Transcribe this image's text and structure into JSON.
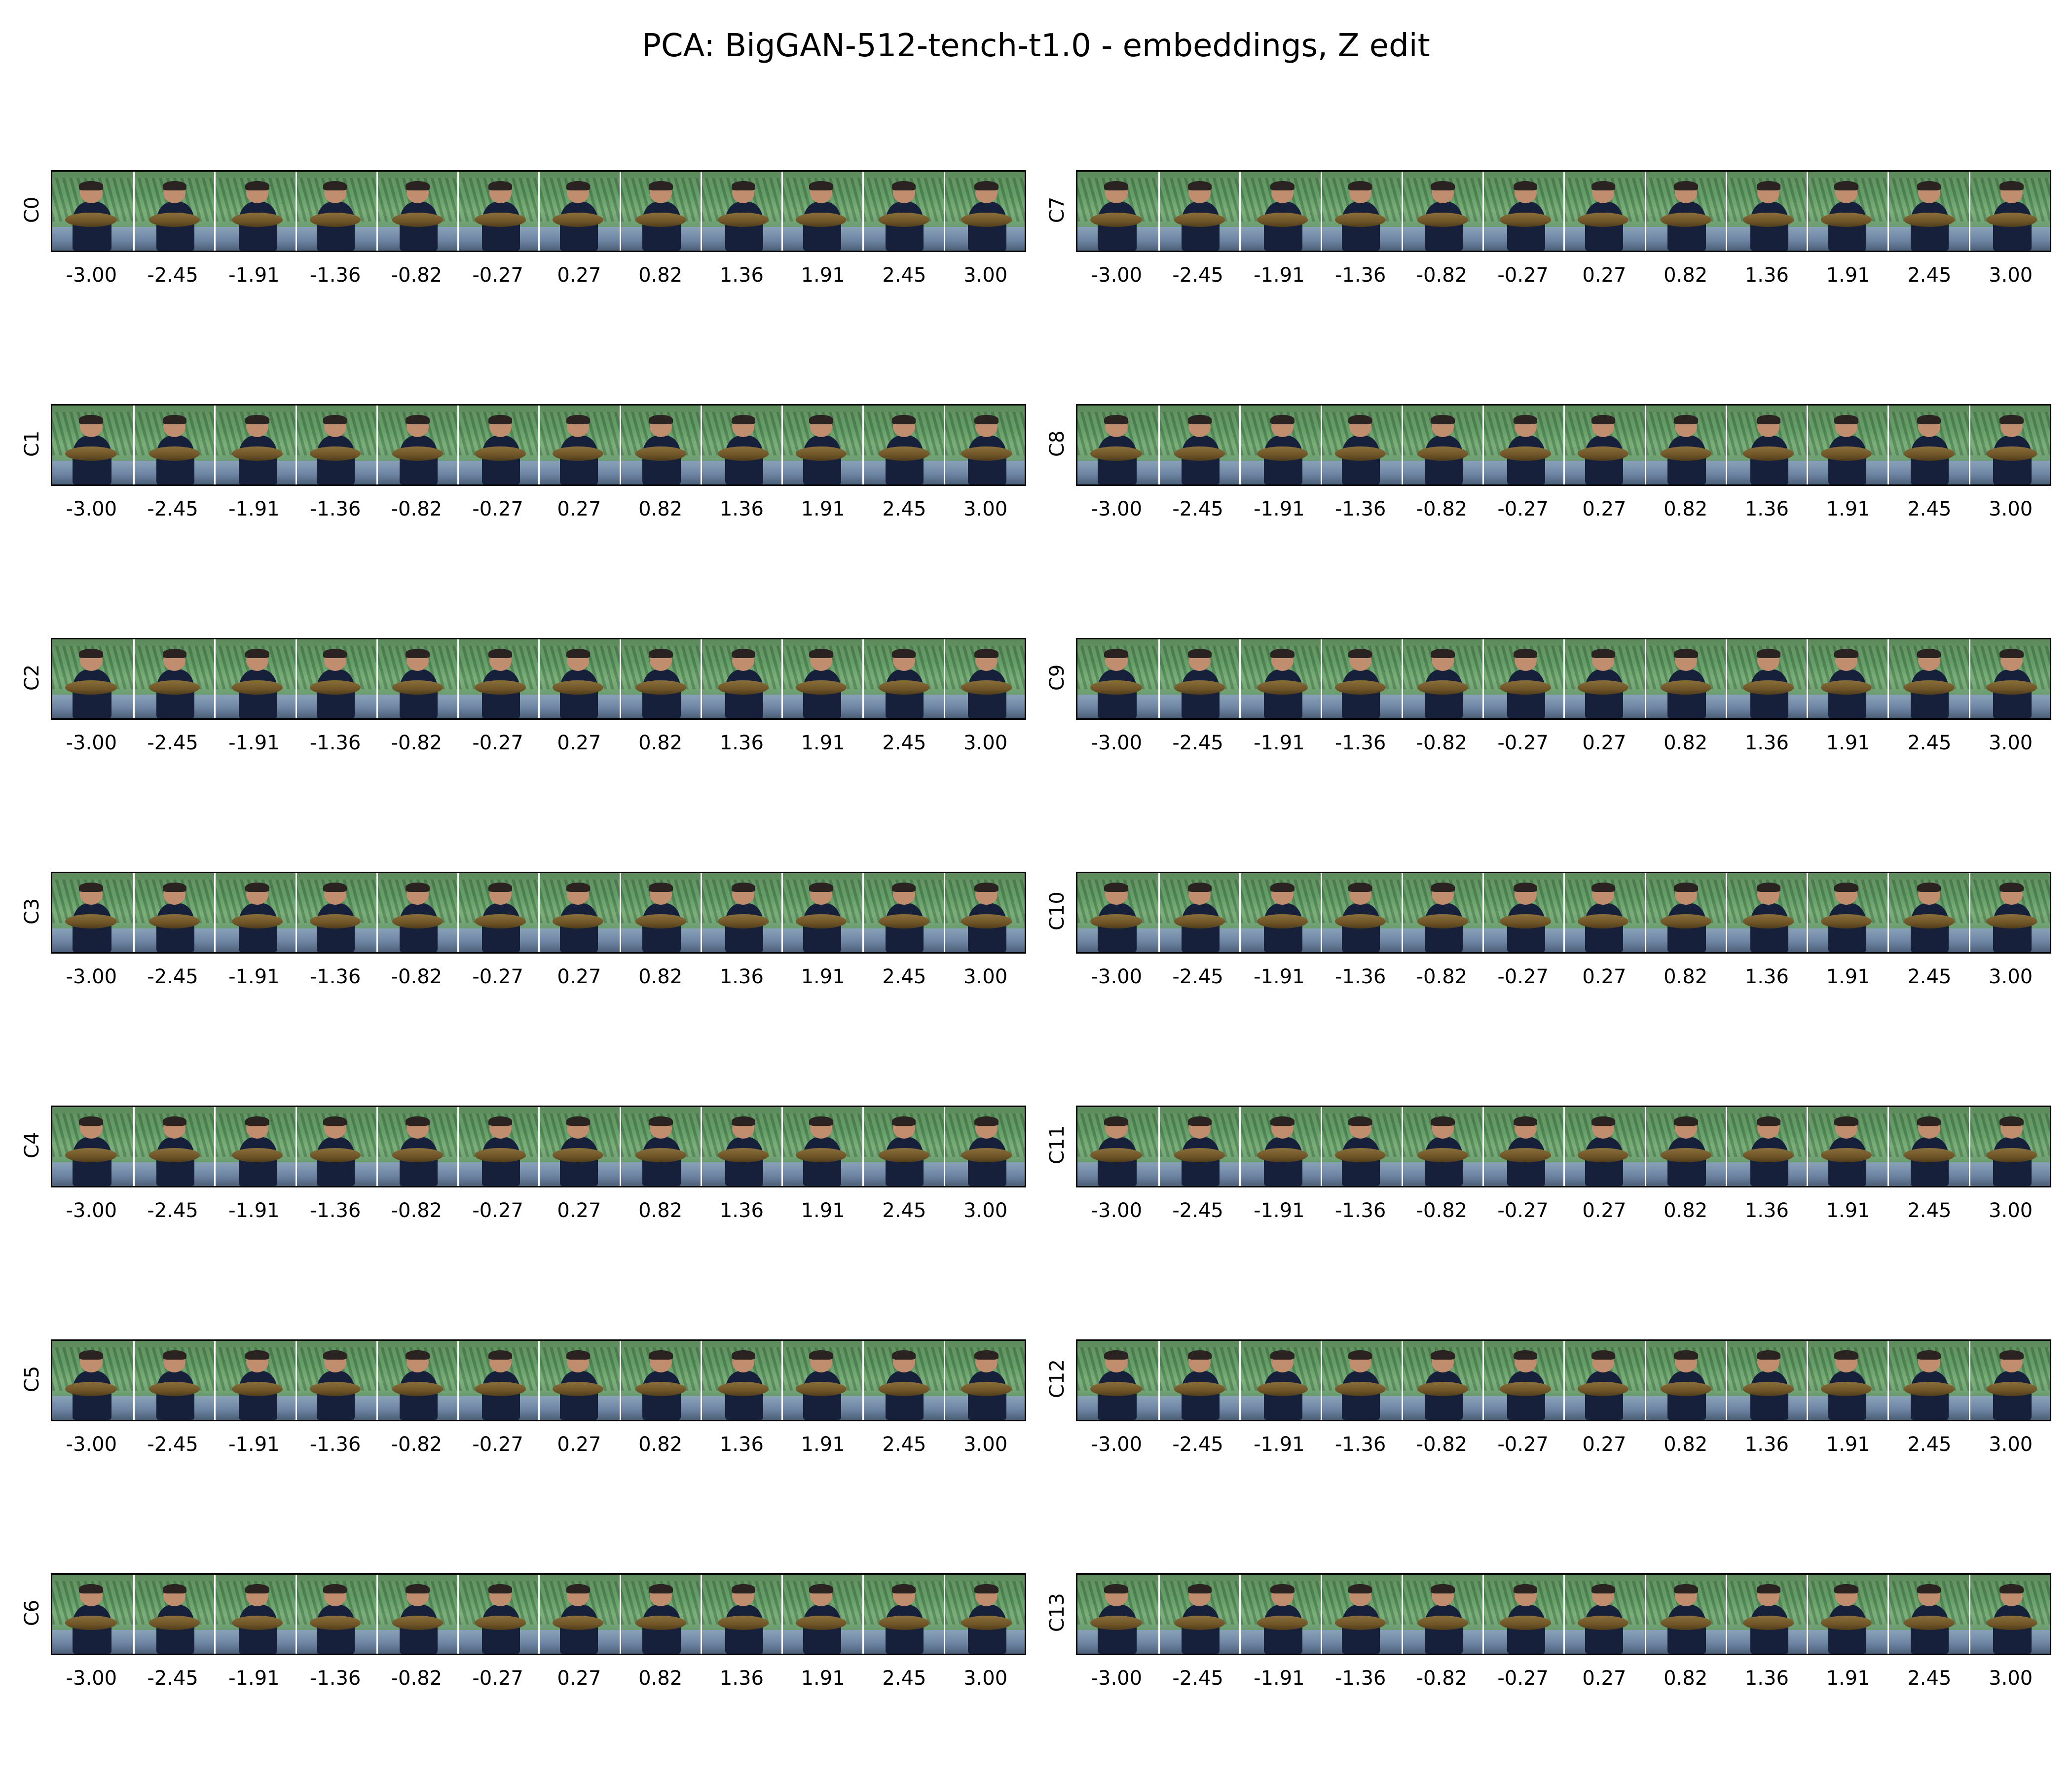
{
  "title": "PCA: BigGAN-512-tench-t1.0 - embeddings, Z edit",
  "chart_data": {
    "type": "image-grid",
    "title": "PCA: BigGAN-512-tench-t1.0 - embeddings, Z edit",
    "components": [
      "C0",
      "C1",
      "C2",
      "C3",
      "C4",
      "C5",
      "C6",
      "C7",
      "C8",
      "C9",
      "C10",
      "C11",
      "C12",
      "C13"
    ],
    "column_components": [
      [
        "C0",
        "C1",
        "C2",
        "C3",
        "C4",
        "C5",
        "C6"
      ],
      [
        "C7",
        "C8",
        "C9",
        "C10",
        "C11",
        "C12",
        "C13"
      ]
    ],
    "x_values": [
      -3.0,
      -2.45,
      -1.91,
      -1.36,
      -0.82,
      -0.27,
      0.27,
      0.82,
      1.36,
      1.91,
      2.45,
      3.0
    ],
    "x_tick_labels": [
      "-3.00",
      "-2.45",
      "-1.91",
      "-1.36",
      "-0.82",
      "-0.27",
      "0.27",
      "0.82",
      "1.36",
      "1.91",
      "2.45",
      "3.00"
    ],
    "frame_content": "boy holding a tench fish in front of green foliage"
  }
}
